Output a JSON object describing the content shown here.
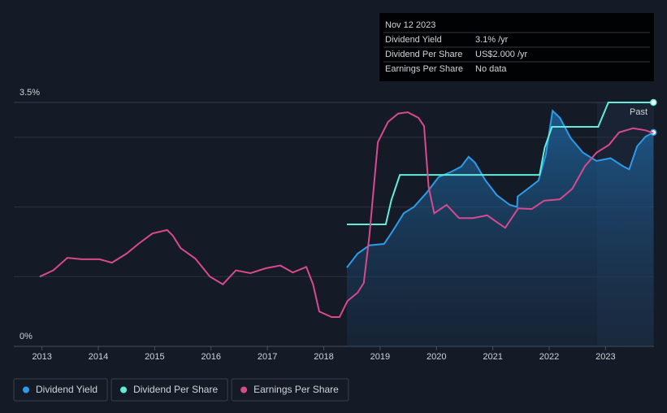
{
  "chart_data": {
    "type": "line",
    "tooltip": {
      "date": "Nov 12 2023",
      "rows": [
        {
          "label": "Dividend Yield",
          "value": "3.1%",
          "unit": "/yr"
        },
        {
          "label": "Dividend Per Share",
          "value": "US$2.000",
          "unit": "/yr"
        },
        {
          "label": "Earnings Per Share",
          "value": "No data"
        }
      ]
    },
    "annotation": "Past",
    "highlight_xlim": [
      2022.85,
      2023.86
    ],
    "xlim": [
      2012.5,
      2023.86
    ],
    "xticks": [
      2013,
      2014,
      2015,
      2016,
      2017,
      2018,
      2019,
      2020,
      2021,
      2022,
      2023
    ],
    "ylim": [
      0,
      3.5
    ],
    "yticks": [
      {
        "value": 0,
        "label": "0%"
      },
      {
        "value": 3.5,
        "label": "3.5%"
      }
    ],
    "ygrid": [
      1,
      2,
      3
    ],
    "series": [
      {
        "name": "Dividend Yield",
        "color": "#2d9be8",
        "area": true,
        "x": [
          2018.41,
          2018.6,
          2018.81,
          2019.07,
          2019.22,
          2019.42,
          2019.6,
          2019.82,
          2020.04,
          2020.25,
          2020.44,
          2020.57,
          2020.68,
          2020.87,
          2021.07,
          2021.3,
          2021.43,
          2021.44,
          2021.62,
          2021.81,
          2021.94,
          2022.06,
          2022.19,
          2022.38,
          2022.6,
          2022.84,
          2023.09,
          2023.32,
          2023.42,
          2023.56,
          2023.71,
          2023.85
        ],
        "values": [
          1.13,
          1.33,
          1.45,
          1.47,
          1.65,
          1.91,
          2.0,
          2.2,
          2.43,
          2.5,
          2.58,
          2.72,
          2.64,
          2.38,
          2.17,
          2.03,
          2.0,
          2.15,
          2.26,
          2.38,
          2.75,
          3.38,
          3.28,
          2.99,
          2.78,
          2.66,
          2.7,
          2.58,
          2.54,
          2.87,
          3.01,
          3.07
        ]
      },
      {
        "name": "Dividend Per Share",
        "color": "#63ecd9",
        "x": [
          2018.41,
          2019.1,
          2019.2,
          2019.35,
          2021.83,
          2021.92,
          2022.05,
          2022.87,
          2023.05,
          2023.85
        ],
        "values": [
          1.75,
          1.75,
          2.1,
          2.46,
          2.46,
          2.85,
          3.15,
          3.15,
          3.5,
          3.5
        ]
      },
      {
        "name": "Earnings Per Share",
        "color": "#d9498e",
        "x": [
          2012.96,
          2013.2,
          2013.45,
          2013.71,
          2014.02,
          2014.24,
          2014.5,
          2014.71,
          2014.96,
          2015.22,
          2015.32,
          2015.46,
          2015.72,
          2015.98,
          2016.21,
          2016.44,
          2016.7,
          2016.97,
          2017.23,
          2017.45,
          2017.69,
          2017.81,
          2017.92,
          2018.14,
          2018.28,
          2018.42,
          2018.6,
          2018.71,
          2018.81,
          2018.96,
          2019.14,
          2019.32,
          2019.49,
          2019.68,
          2019.78,
          2019.86,
          2019.96,
          2020.18,
          2020.4,
          2020.65,
          2020.9,
          2021.04,
          2021.22,
          2021.45,
          2021.69,
          2021.91,
          2022.19,
          2022.41,
          2022.63,
          2022.84,
          2023.06,
          2023.24,
          2023.49,
          2023.71,
          2023.85
        ],
        "values": [
          1.0,
          1.09,
          1.27,
          1.25,
          1.25,
          1.2,
          1.33,
          1.47,
          1.62,
          1.67,
          1.59,
          1.41,
          1.26,
          1.0,
          0.89,
          1.09,
          1.05,
          1.12,
          1.16,
          1.06,
          1.14,
          0.89,
          0.5,
          0.42,
          0.42,
          0.65,
          0.77,
          0.91,
          1.59,
          2.93,
          3.22,
          3.34,
          3.36,
          3.28,
          3.16,
          2.29,
          1.91,
          2.03,
          1.84,
          1.84,
          1.88,
          1.8,
          1.7,
          1.98,
          1.97,
          2.09,
          2.11,
          2.26,
          2.58,
          2.78,
          2.89,
          3.07,
          3.13,
          3.1,
          3.06
        ]
      }
    ]
  }
}
